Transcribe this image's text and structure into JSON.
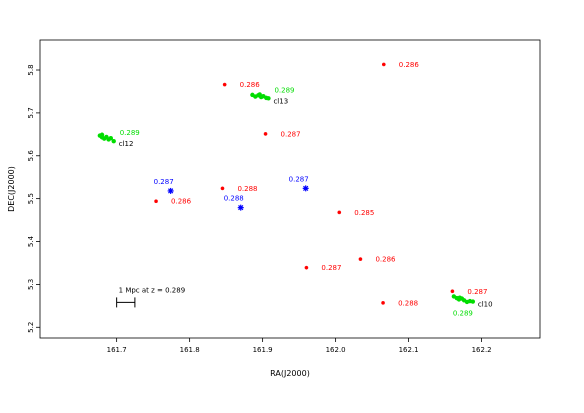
{
  "chart_data": {
    "type": "scatter",
    "title": "",
    "xlabel": "RA(J2000)",
    "ylabel": "DEC(J2000)",
    "xlim": [
      161.595,
      162.28
    ],
    "ylim": [
      5.175,
      5.87
    ],
    "x_reversed": false,
    "grid": false,
    "x_ticks": [
      161.7,
      161.8,
      161.9,
      162.0,
      162.1,
      162.2
    ],
    "x_tick_labels": [
      "161.7",
      "161.8",
      "161.9",
      "162.0",
      "162.1",
      "162.2"
    ],
    "y_ticks": [
      5.2,
      5.3,
      5.4,
      5.5,
      5.6,
      5.7,
      5.8
    ],
    "y_tick_labels": [
      "5.2",
      "5.3",
      "5.4",
      "5.5",
      "5.6",
      "5.7",
      "5.8"
    ],
    "colors": {
      "red": "#ff0000",
      "green": "#00dd00",
      "blue": "#0000ff",
      "black": "#000000"
    },
    "red_points": [
      {
        "x": 162.066,
        "y": 5.813,
        "label": "0.286"
      },
      {
        "x": 161.848,
        "y": 5.766,
        "label": "0.286"
      },
      {
        "x": 161.904,
        "y": 5.651,
        "label": "0.287"
      },
      {
        "x": 161.845,
        "y": 5.524,
        "label": "0.288"
      },
      {
        "x": 161.754,
        "y": 5.494,
        "label": "0.286"
      },
      {
        "x": 162.005,
        "y": 5.468,
        "label": "0.285"
      },
      {
        "x": 162.034,
        "y": 5.359,
        "label": "0.286"
      },
      {
        "x": 161.96,
        "y": 5.339,
        "label": "0.287"
      },
      {
        "x": 162.16,
        "y": 5.284,
        "label": "0.287"
      },
      {
        "x": 162.065,
        "y": 5.257,
        "label": "0.288"
      }
    ],
    "blue_points": [
      {
        "x": 161.774,
        "y": 5.518,
        "label": "0.287"
      },
      {
        "x": 161.87,
        "y": 5.479,
        "label": "0.288"
      },
      {
        "x": 161.959,
        "y": 5.524,
        "label": "0.287"
      }
    ],
    "clusters": [
      {
        "name": "cl13",
        "redshift": "0.289",
        "points": [
          [
            161.886,
            5.742
          ],
          [
            161.89,
            5.738
          ],
          [
            161.894,
            5.741
          ],
          [
            161.898,
            5.737
          ],
          [
            161.901,
            5.739
          ],
          [
            161.905,
            5.735
          ],
          [
            161.908,
            5.734
          ],
          [
            161.896,
            5.743
          ]
        ]
      },
      {
        "name": "cl12",
        "redshift": "0.289",
        "points": [
          [
            161.677,
            5.647
          ],
          [
            161.68,
            5.643
          ],
          [
            161.683,
            5.64
          ],
          [
            161.686,
            5.644
          ],
          [
            161.689,
            5.638
          ],
          [
            161.692,
            5.641
          ],
          [
            161.696,
            5.634
          ],
          [
            161.68,
            5.649
          ]
        ]
      },
      {
        "name": "cl10",
        "redshift": "0.289",
        "points": [
          [
            162.162,
            5.272
          ],
          [
            162.166,
            5.268
          ],
          [
            162.169,
            5.265
          ],
          [
            162.173,
            5.267
          ],
          [
            162.176,
            5.263
          ],
          [
            162.18,
            5.259
          ],
          [
            162.184,
            5.261
          ],
          [
            162.188,
            5.26
          ],
          [
            162.17,
            5.269
          ]
        ]
      }
    ],
    "scale_bar": {
      "label": "1 Mpc at z = 0.289",
      "x_start": 161.7,
      "x_end": 161.725,
      "y": 5.258
    }
  }
}
